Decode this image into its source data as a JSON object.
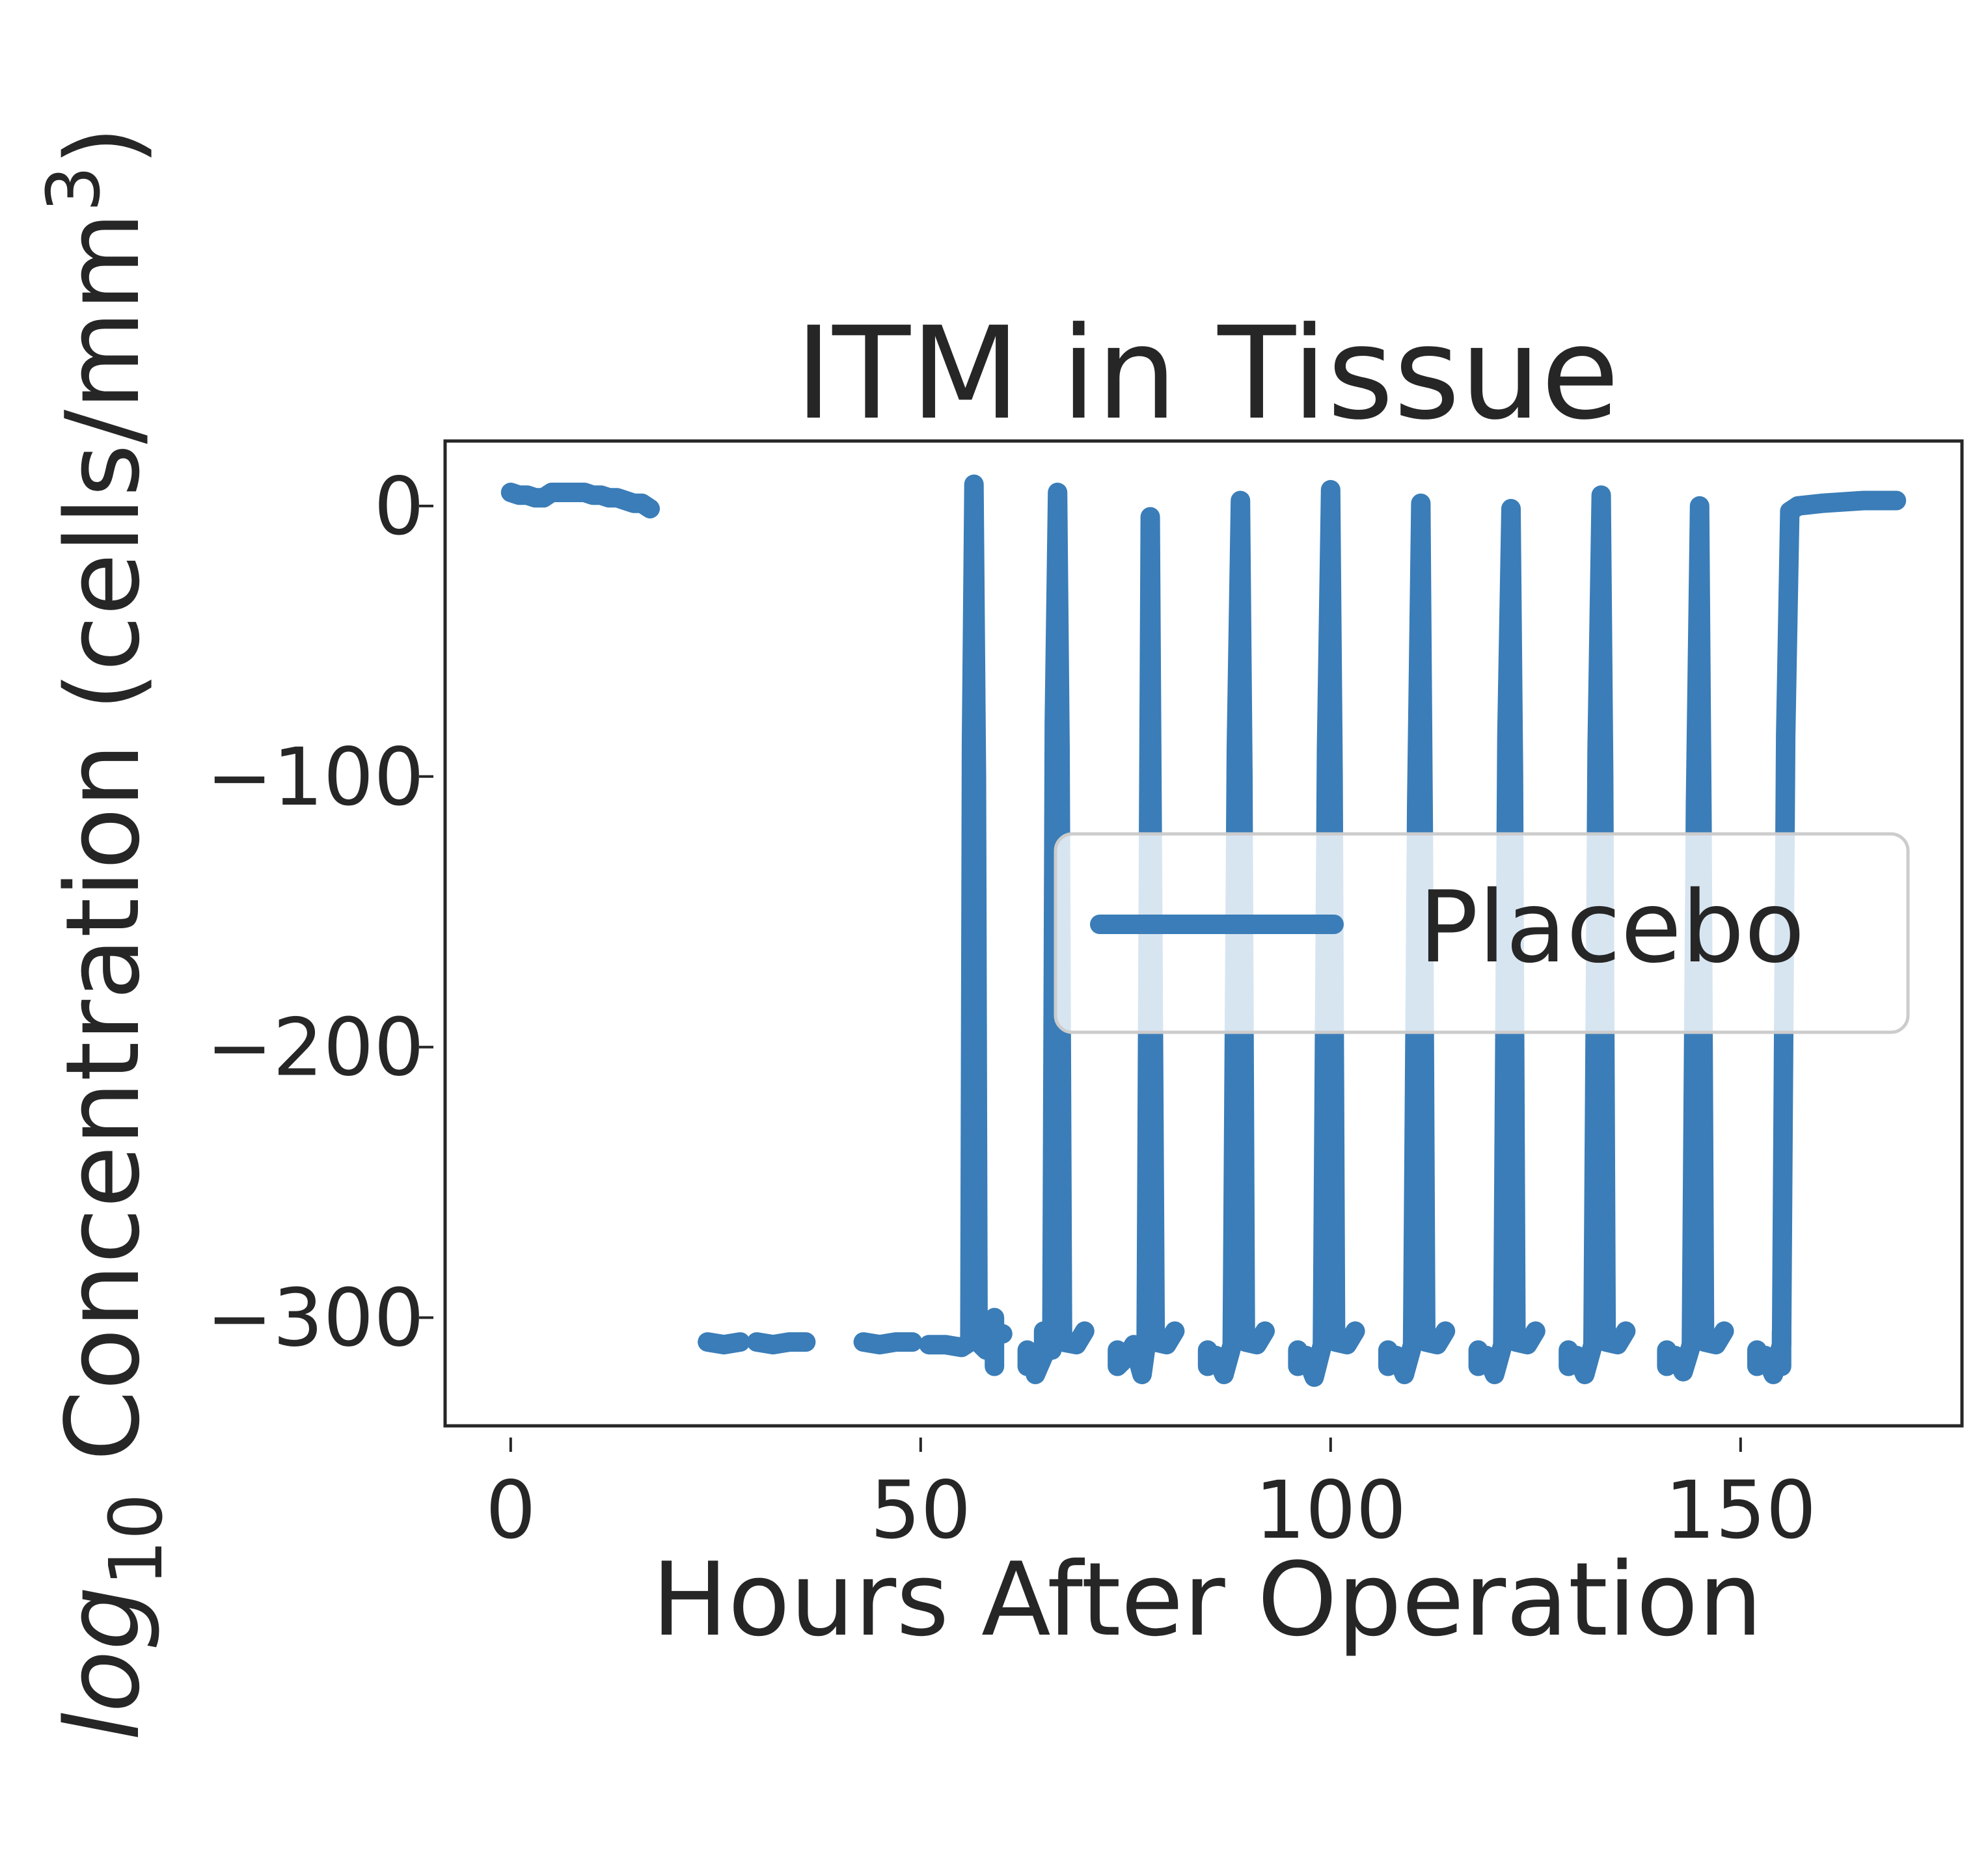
{
  "chart_data": {
    "type": "line",
    "title": "ITM in Tissue",
    "xlabel": "Hours After Operation",
    "ylabel_prefix": "log",
    "ylabel_subscript": "10",
    "ylabel_suffix": " Concentration (cells/mm",
    "ylabel_superscript": "3",
    "ylabel_close": ")",
    "xlim": [
      -8,
      177
    ],
    "ylim": [
      -340,
      24
    ],
    "xticks": [
      {
        "value": 0,
        "label": "0"
      },
      {
        "value": 50,
        "label": "50"
      },
      {
        "value": 100,
        "label": "100"
      },
      {
        "value": 150,
        "label": "150"
      }
    ],
    "yticks": [
      {
        "value": 0,
        "label": "0"
      },
      {
        "value": -100,
        "label": "−100"
      },
      {
        "value": -200,
        "label": "−200"
      },
      {
        "value": -300,
        "label": "−300"
      }
    ],
    "grid": false,
    "legend_position": "center-right",
    "color": "#3a7db8",
    "series": [
      {
        "name": "Placebo",
        "segments": [
          [
            [
              0,
              5
            ],
            [
              1,
              4
            ],
            [
              2,
              4
            ],
            [
              3,
              3
            ],
            [
              4,
              3
            ],
            [
              5,
              5
            ],
            [
              6,
              5
            ],
            [
              7,
              5
            ],
            [
              8,
              5
            ],
            [
              9,
              5
            ],
            [
              10,
              4
            ],
            [
              11,
              4
            ],
            [
              12,
              3
            ],
            [
              13,
              3
            ],
            [
              14,
              2
            ],
            [
              15,
              1
            ],
            [
              16,
              1
            ],
            [
              17,
              -1
            ]
          ],
          [
            [
              24,
              -309
            ],
            [
              26,
              -310
            ],
            [
              28,
              -309
            ]
          ],
          [
            [
              30,
              -309
            ],
            [
              32,
              -310
            ],
            [
              34,
              -309
            ],
            [
              36,
              -309
            ]
          ],
          [
            [
              43,
              -309
            ],
            [
              45,
              -310
            ],
            [
              47,
              -309
            ],
            [
              49,
              -309
            ]
          ],
          [
            [
              51,
              -310
            ],
            [
              53,
              -310
            ],
            [
              55,
              -311
            ],
            [
              56,
              -309
            ],
            [
              56.2,
              -88
            ],
            [
              56.5,
              8
            ],
            [
              56.8,
              -100
            ],
            [
              57,
              -309
            ],
            [
              58,
              -312
            ],
            [
              59,
              -305
            ],
            [
              60,
              -306
            ]
          ],
          [
            [
              59,
              -318
            ],
            [
              59,
              -300
            ]
          ],
          [
            [
              63,
              -312
            ],
            [
              63,
              -318
            ],
            [
              64,
              -313
            ],
            [
              64,
              -321
            ],
            [
              65,
              -314
            ],
            [
              65,
              -305
            ],
            [
              66,
              -312
            ],
            [
              66.3,
              -80
            ],
            [
              66.7,
              5
            ],
            [
              67,
              -90
            ],
            [
              67.3,
              -309
            ],
            [
              69,
              -310
            ],
            [
              70,
              -305
            ]
          ],
          [
            [
              74,
              -312
            ],
            [
              74,
              -318
            ],
            [
              75,
              -315
            ],
            [
              76,
              -310
            ],
            [
              77,
              -321
            ],
            [
              77.5,
              -310
            ],
            [
              77.8,
              -120
            ],
            [
              78,
              -4
            ],
            [
              78.3,
              -150
            ],
            [
              78.6,
              -309
            ],
            [
              80,
              -310
            ],
            [
              81,
              -305
            ]
          ],
          [
            [
              85,
              -312
            ],
            [
              85,
              -318
            ],
            [
              86,
              -314
            ],
            [
              87,
              -321
            ],
            [
              88,
              -310
            ],
            [
              88.5,
              -90
            ],
            [
              89,
              2
            ],
            [
              89.3,
              -100
            ],
            [
              89.6,
              -309
            ],
            [
              91,
              -310
            ],
            [
              92,
              -305
            ]
          ],
          [
            [
              96,
              -312
            ],
            [
              96,
              -318
            ],
            [
              97,
              -314
            ],
            [
              98,
              -322
            ],
            [
              99,
              -310
            ],
            [
              99.5,
              -90
            ],
            [
              100,
              6
            ],
            [
              100.3,
              -100
            ],
            [
              100.6,
              -309
            ],
            [
              102,
              -310
            ],
            [
              103,
              -305
            ]
          ],
          [
            [
              107,
              -312
            ],
            [
              107,
              -318
            ],
            [
              108,
              -314
            ],
            [
              109,
              -321
            ],
            [
              110,
              -310
            ],
            [
              110.5,
              -110
            ],
            [
              111,
              1
            ],
            [
              111.3,
              -120
            ],
            [
              111.6,
              -309
            ],
            [
              113,
              -310
            ],
            [
              114,
              -305
            ]
          ],
          [
            [
              118,
              -312
            ],
            [
              118,
              -318
            ],
            [
              119,
              -314
            ],
            [
              120,
              -321
            ],
            [
              121,
              -310
            ],
            [
              121.5,
              -85
            ],
            [
              122,
              -1
            ],
            [
              122.3,
              -100
            ],
            [
              122.6,
              -309
            ],
            [
              124,
              -310
            ],
            [
              125,
              -305
            ]
          ],
          [
            [
              129,
              -312
            ],
            [
              129,
              -318
            ],
            [
              130,
              -314
            ],
            [
              131,
              -321
            ],
            [
              132,
              -310
            ],
            [
              132.5,
              -90
            ],
            [
              133,
              4
            ],
            [
              133.3,
              -100
            ],
            [
              133.6,
              -309
            ],
            [
              135,
              -310
            ],
            [
              136,
              -305
            ]
          ],
          [
            [
              141,
              -312
            ],
            [
              141,
              -318
            ],
            [
              142,
              -314
            ],
            [
              143,
              -320
            ],
            [
              144,
              -310
            ],
            [
              144.5,
              -110
            ],
            [
              145,
              0
            ],
            [
              145.3,
              -120
            ],
            [
              145.6,
              -309
            ],
            [
              147,
              -310
            ],
            [
              148,
              -305
            ]
          ],
          [
            [
              152,
              -312
            ],
            [
              152,
              -318
            ],
            [
              153,
              -314
            ],
            [
              154,
              -321
            ],
            [
              155,
              -310
            ],
            [
              155.5,
              -85
            ],
            [
              156,
              -2
            ],
            [
              157,
              0
            ],
            [
              160,
              1
            ],
            [
              165,
              2
            ],
            [
              169,
              2
            ]
          ],
          [
            [
              155,
              -318
            ],
            [
              155,
              -305
            ]
          ]
        ]
      }
    ]
  }
}
